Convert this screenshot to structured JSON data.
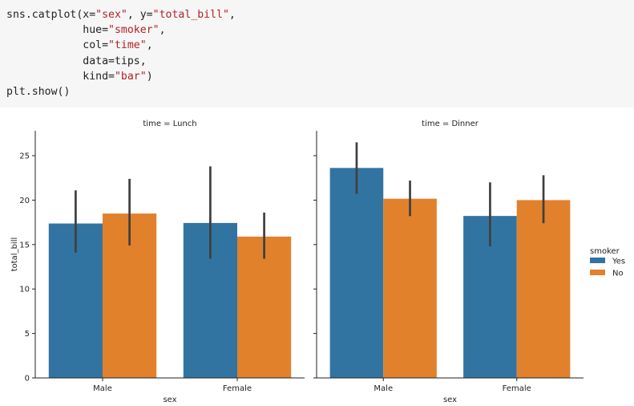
{
  "code": {
    "lines": [
      [
        {
          "t": "sns.catplot(x="
        },
        {
          "t": "\"sex\"",
          "s": true
        },
        {
          "t": ", y="
        },
        {
          "t": "\"total_bill\"",
          "s": true
        },
        {
          "t": ","
        }
      ],
      [
        {
          "t": "            hue="
        },
        {
          "t": "\"smoker\"",
          "s": true
        },
        {
          "t": ","
        }
      ],
      [
        {
          "t": "            col="
        },
        {
          "t": "\"time\"",
          "s": true
        },
        {
          "t": ","
        }
      ],
      [
        {
          "t": "            data=tips,"
        }
      ],
      [
        {
          "t": "            kind="
        },
        {
          "t": "\"bar\"",
          "s": true
        },
        {
          "t": ")"
        }
      ],
      [
        {
          "t": "plt.show()"
        }
      ]
    ]
  },
  "chart_data": {
    "type": "bar",
    "xlabel": "sex",
    "ylabel": "total_bill",
    "ylim": [
      0,
      27.8
    ],
    "yticks": [
      0,
      5,
      10,
      15,
      20,
      25
    ],
    "grid": false,
    "legend": {
      "title": "smoker",
      "placement": "right",
      "entries": [
        {
          "name": "Yes",
          "color": "#3274a1"
        },
        {
          "name": "No",
          "color": "#e1812c"
        }
      ]
    },
    "categories": [
      "Male",
      "Female"
    ],
    "errorbar_color": "#3f3f3f",
    "panels": [
      {
        "title": "time = Lunch",
        "series": [
          {
            "name": "Yes",
            "values": [
              17.37,
              17.43
            ],
            "ci_low": [
              14.1,
              13.4
            ],
            "ci_high": [
              21.1,
              23.8
            ]
          },
          {
            "name": "No",
            "values": [
              18.49,
              15.9
            ],
            "ci_low": [
              14.9,
              13.4
            ],
            "ci_high": [
              22.4,
              18.6
            ]
          }
        ]
      },
      {
        "title": "time = Dinner",
        "series": [
          {
            "name": "Yes",
            "values": [
              23.62,
              18.22
            ],
            "ci_low": [
              20.7,
              14.8
            ],
            "ci_high": [
              26.5,
              22.0
            ]
          },
          {
            "name": "No",
            "values": [
              20.16,
              20.0
            ],
            "ci_low": [
              18.2,
              17.4
            ],
            "ci_high": [
              22.2,
              22.8
            ]
          }
        ]
      }
    ]
  }
}
